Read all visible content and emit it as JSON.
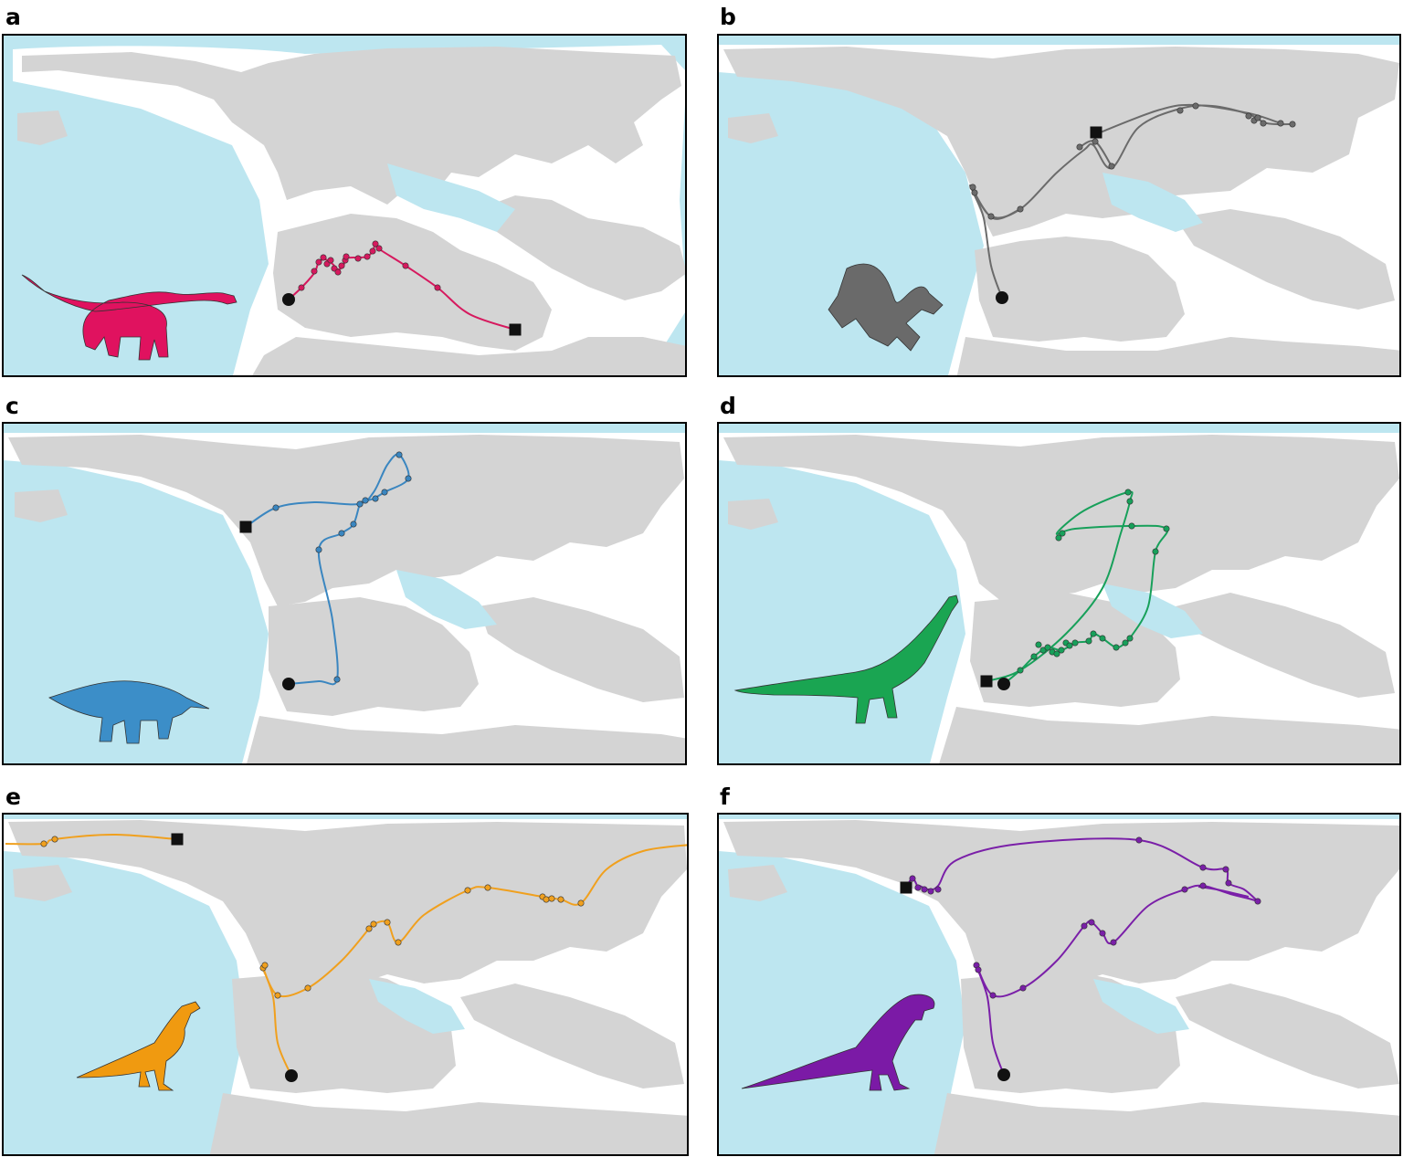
{
  "figure": {
    "panels": [
      {
        "label": "a",
        "route_color": "#d6195e",
        "silhouette": "sauropodomorph-icon",
        "silhouette_color": "#e0125f"
      },
      {
        "label": "b",
        "route_color": "#6b6b6b",
        "silhouette": "archaeopteryx-icon",
        "silhouette_color": "#6a6a6a"
      },
      {
        "label": "c",
        "route_color": "#3a86c0",
        "silhouette": "stegosaurus-icon",
        "silhouette_color": "#3c8ec8"
      },
      {
        "label": "d",
        "route_color": "#17a05a",
        "silhouette": "sauropod-icon",
        "silhouette_color": "#1aa552"
      },
      {
        "label": "e",
        "route_color": "#f0a01e",
        "silhouette": "feathered-theropod-icon",
        "silhouette_color": "#f09a10"
      },
      {
        "label": "f",
        "route_color": "#7a1fa8",
        "silhouette": "tyrannosaur-icon",
        "silhouette_color": "#7b1aa6"
      }
    ]
  },
  "colors": {
    "ocean": "#bde6f0",
    "land": "#d4d4d4",
    "shelf": "#ffffff",
    "markers": "#111111"
  },
  "legend_markers": {
    "start": "circle",
    "end": "square"
  }
}
